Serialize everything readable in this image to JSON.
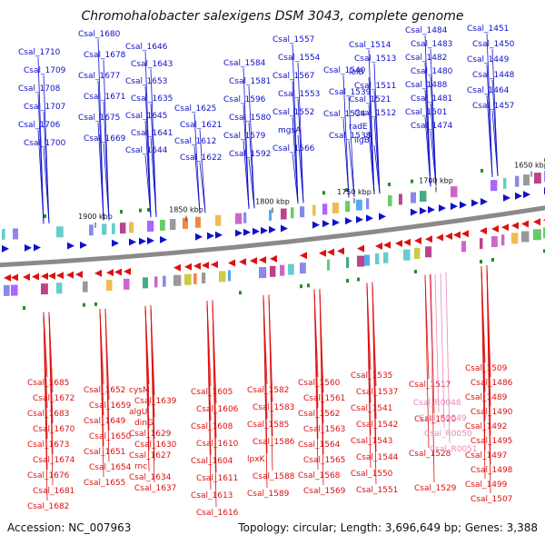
{
  "title": "Chromohalobacter salexigens DSM 3043, complete genome",
  "accession_label": "Accession: NC_007963",
  "topology_label": "Topology: circular; Length: 3,696,649 bp; Genes: 3,388",
  "colors": {
    "forward": "#1010cc",
    "reverse": "#dd1111",
    "rna": "#e888bb",
    "backbone": "#8a8a8a",
    "tick": "#2a8a2a"
  },
  "scale_ticks": [
    "1650 kbp",
    "1700 kbp",
    "1750 kbp",
    "1800 kbp",
    "1850 kbp",
    "1900 kbp"
  ],
  "top_labels": [
    "Csal_1710",
    "Csal_1709",
    "Csal_1708",
    "Csal_1707",
    "Csal_1706",
    "Csal_1700",
    "Csal_1680",
    "Csal_1678",
    "Csal_1677",
    "Csal_1671",
    "Csal_1675",
    "Csal_1669",
    "Csal_1646",
    "Csal_1643",
    "Csal_1653",
    "Csal_1635",
    "Csal_1645",
    "Csal_1641",
    "Csal_1644",
    "Csal_1625",
    "Csal_1621",
    "Csal_1612",
    "Csal_1622",
    "Csal_1584",
    "Csal_1581",
    "Csal_1596",
    "Csal_1580",
    "Csal_1579",
    "Csal_1592",
    "Csal_1557",
    "Csal_1554",
    "Csal_1567",
    "Csal_1553",
    "Csal_1552",
    "mgsA",
    "Csal_1566",
    "Csal_1540",
    "Csal_1539",
    "Csal_1534",
    "Csal_1538",
    "Csal_1514",
    "Csal_1513",
    "lolB",
    "Csal_1511",
    "Csal_1521",
    "Csal_1512",
    "radE",
    "ligB",
    "Csal_1484",
    "Csal_1483",
    "Csal_1482",
    "Csal_1480",
    "Csal_1488",
    "Csal_1481",
    "Csal_1501",
    "Csal_1474",
    "Csal_1451",
    "Csal_1450",
    "Csal_1449",
    "Csal_1448",
    "Csal_1464",
    "Csal_1457"
  ],
  "bottom_labels": [
    "Csal_1685",
    "Csal_1672",
    "Csal_1683",
    "Csal_1670",
    "Csal_1673",
    "Csal_1674",
    "Csal_1676",
    "Csal_1681",
    "Csal_1682",
    "Csal_1652",
    "Csal_1659",
    "Csal_1649",
    "Csal_1650",
    "Csal_1651",
    "Csal_1654",
    "Csal_1655",
    "cysM",
    "Csal_1639",
    "algU",
    "dinG",
    "Csal_1629",
    "Csal_1630",
    "Csal_1627",
    "rnc",
    "Csal_1634",
    "Csal_1637",
    "Csal_1605",
    "Csal_1606",
    "Csal_1608",
    "Csal_1610",
    "Csal_1604",
    "Csal_1611",
    "Csal_1613",
    "Csal_1616",
    "Csal_1582",
    "Csal_1583",
    "Csal_1585",
    "Csal_1586",
    "lpxK",
    "Csal_1588",
    "Csal_1589",
    "Csal_1560",
    "Csal_1561",
    "Csal_1562",
    "Csal_1563",
    "Csal_1564",
    "Csal_1565",
    "Csal_1568",
    "Csal_1569",
    "Csal_1535",
    "Csal_1537",
    "Csal_1541",
    "Csal_1542",
    "Csal_1543",
    "Csal_1544",
    "Csal_1550",
    "Csal_1551",
    "Csal_1517",
    "Csal_1520",
    "Csal_1528",
    "Csal_1529",
    "Csal_1509",
    "Csal_1486",
    "Csal_1489",
    "Csal_1490",
    "Csal_1492",
    "Csal_1495",
    "Csal_1497",
    "Csal_1498",
    "Csal_1499",
    "Csal_1507"
  ],
  "rna_labels": [
    "Csal_R0048",
    "Csal_R0049",
    "Csal_R0050",
    "Csal_R0051"
  ]
}
